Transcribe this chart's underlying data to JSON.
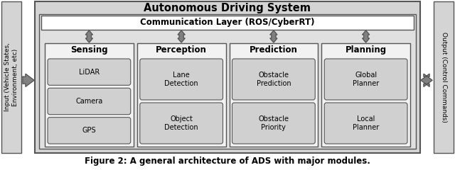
{
  "title": "Autonomous Driving System",
  "comm_layer": "Communication Layer (ROS/CyberRT)",
  "modules": [
    "Sensing",
    "Perception",
    "Prediction",
    "Planning"
  ],
  "sub_items": {
    "Sensing": [
      "LiDAR",
      "Camera",
      "GPS"
    ],
    "Perception": [
      "Lane\nDetection",
      "Object\nDetection"
    ],
    "Prediction": [
      "Obstacle\nPrediction",
      "Obstacle\nPriority"
    ],
    "Planning": [
      "Global\nPlanner",
      "Local\nPlanner"
    ]
  },
  "input_label": "Input (Vehicle States,\nEnvironment, etc)",
  "output_label": "Output (Control Commands)",
  "caption": "Figure 2: A general architecture of ADS with major modules.",
  "bg_outer": "#d4d4d4",
  "bg_inner": "#e0e0e0",
  "bg_module": "#f2f2f2",
  "bg_subitem": "#d0d0d0",
  "bg_commbar": "#ffffff",
  "bg_sidebar": "#d4d4d4",
  "arrow_color": "#808080",
  "text_color": "#000000",
  "border_color": "#555555"
}
